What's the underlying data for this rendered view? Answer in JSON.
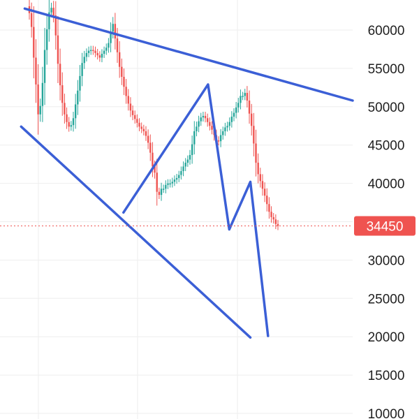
{
  "chart_data": {
    "type": "candlestick",
    "title": "",
    "xlabel": "",
    "ylabel": "",
    "ylim": [
      10000,
      65000
    ],
    "y_ticks": [
      60000,
      55000,
      50000,
      45000,
      40000,
      35000,
      30000,
      25000,
      20000,
      15000,
      10000
    ],
    "y_axis_side": "right",
    "grid": true,
    "current_price": 34450,
    "current_price_label": "34450",
    "series": [
      {
        "close": [
          62200,
          60400,
          56400,
          52900,
          49000,
          50100,
          53100,
          57400,
          60100,
          62300,
          62900,
          61900,
          59300,
          55600,
          52800,
          50500,
          49000,
          48000,
          47400,
          47600,
          48500,
          50300,
          52100,
          54000,
          55700,
          56500,
          57000,
          57300,
          57400,
          57300,
          57000,
          56700,
          56400,
          56900,
          57300,
          57700,
          58300,
          59800,
          60800,
          58900,
          57100,
          55200,
          53900,
          52600,
          51400,
          50400,
          49500,
          48900,
          48400,
          47900,
          47400,
          47100,
          46800,
          46200,
          45300,
          44000,
          42200,
          41400,
          38900,
          38500,
          39300,
          39300,
          39800,
          40000,
          40000,
          40200,
          40500,
          40700,
          41100,
          41600,
          42200,
          42700,
          43100,
          43700,
          45100,
          46800,
          47400,
          48100,
          48600,
          48800,
          48500,
          48000,
          47500,
          47000,
          46300,
          45600,
          45500,
          46300,
          46800,
          47300,
          47500,
          48000,
          48700,
          49200,
          49900,
          50500,
          51400,
          51400,
          51800,
          50800,
          49100,
          47500,
          45200,
          42700,
          41200,
          40300,
          39300,
          38400,
          37300,
          36300,
          35600,
          35300,
          34700,
          34450
        ],
        "up_color": "#26a69a",
        "down_color": "#ef5350"
      }
    ],
    "annotations": [
      {
        "type": "trendline",
        "color": "#3b5fd6",
        "points": [
          [
            0.07,
            62800
          ],
          [
            1.0,
            50800
          ]
        ]
      },
      {
        "type": "trendline",
        "color": "#3b5fd6",
        "points": [
          [
            0.06,
            47400
          ],
          [
            0.71,
            19900
          ]
        ]
      },
      {
        "type": "polyline",
        "color": "#3b5fd6",
        "points": [
          [
            0.35,
            36200
          ],
          [
            0.59,
            52900
          ],
          [
            0.65,
            34000
          ],
          [
            0.71,
            40200
          ],
          [
            0.76,
            20100
          ]
        ]
      }
    ]
  }
}
